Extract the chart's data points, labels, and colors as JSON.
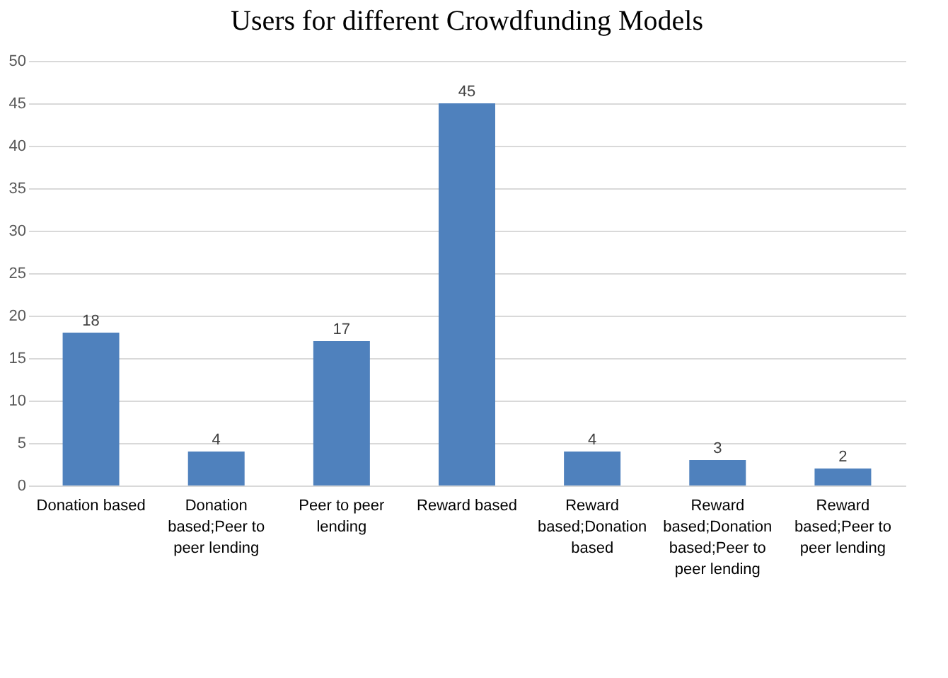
{
  "chart_data": {
    "type": "bar",
    "title": "Users for different Crowdfunding Models",
    "categories": [
      "Donation based",
      "Donation based;Peer to peer lending",
      "Peer to peer lending",
      "Reward based",
      "Reward based;Donation based",
      "Reward based;Donation based;Peer to peer lending",
      "Reward based;Peer to peer lending"
    ],
    "values": [
      18,
      4,
      17,
      45,
      4,
      3,
      2
    ],
    "color": "#4f81bd",
    "ylim": [
      0,
      50
    ],
    "yticks": [
      0,
      5,
      10,
      15,
      20,
      25,
      30,
      35,
      40,
      45,
      50
    ],
    "grid": "y",
    "data_labels": true
  }
}
